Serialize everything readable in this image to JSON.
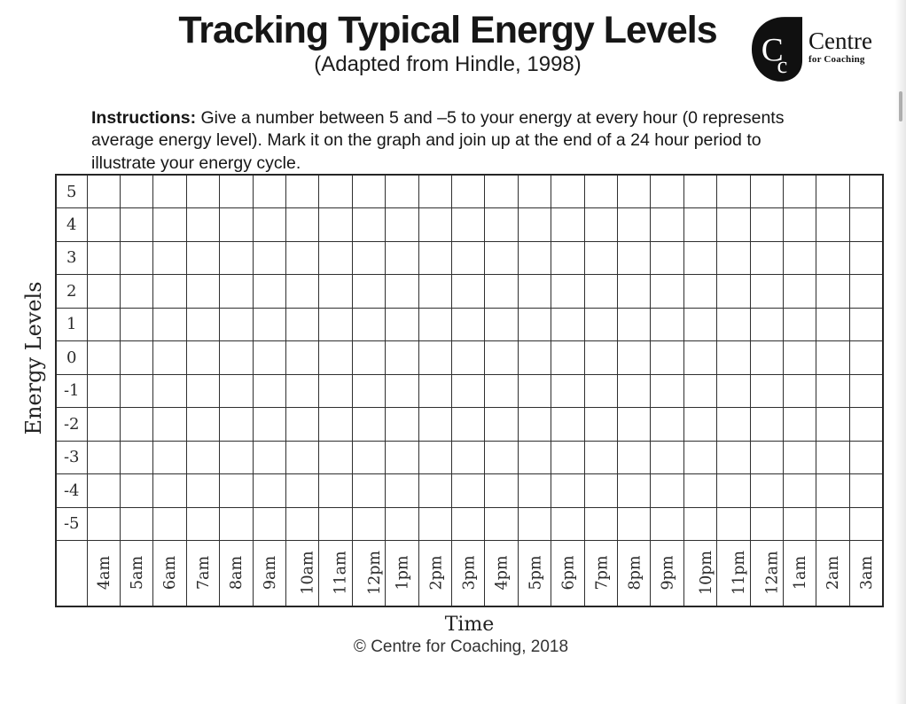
{
  "page": {
    "title": "Tracking Typical Energy Levels",
    "subtitle": "(Adapted from Hindle, 1998)",
    "instructions_label": "Instructions:",
    "instructions_text": "Give a number between 5 and –5 to your energy at every hour (0 represents average energy level).  Mark it on the graph and join up at the end of a 24 hour period to illustrate your energy cycle.",
    "footer_copyright": "© Centre for Coaching, 2018"
  },
  "logo": {
    "monogram_large": "C",
    "monogram_small": "c",
    "name": "Centre",
    "name_sub": "for Coaching"
  },
  "chart_data": {
    "type": "table",
    "title": "Tracking Typical Energy Levels",
    "subtitle": "(Adapted from Hindle, 1998)",
    "ylabel": "Energy Levels",
    "xlabel": "Time",
    "ylim": [
      -5,
      5
    ],
    "y_tick_labels": [
      "5",
      "4",
      "3",
      "2",
      "1",
      "0",
      "-1",
      "-2",
      "-3",
      "-4",
      "-5"
    ],
    "x_tick_labels": [
      "4am",
      "5am",
      "6am",
      "7am",
      "8am",
      "9am",
      "10am",
      "11am",
      "12pm",
      "1pm",
      "2pm",
      "3pm",
      "4pm",
      "5pm",
      "6pm",
      "7pm",
      "8pm",
      "9pm",
      "10pm",
      "11pm",
      "12am",
      "1am",
      "2am",
      "3am"
    ],
    "grid": true,
    "series": [],
    "notes": "blank worksheet grid – no data points plotted"
  },
  "colors": {
    "ink": "#1c1c1c",
    "grid_line": "#2f2f2f",
    "paper": "#ffffff",
    "logo_fill": "#101010"
  }
}
